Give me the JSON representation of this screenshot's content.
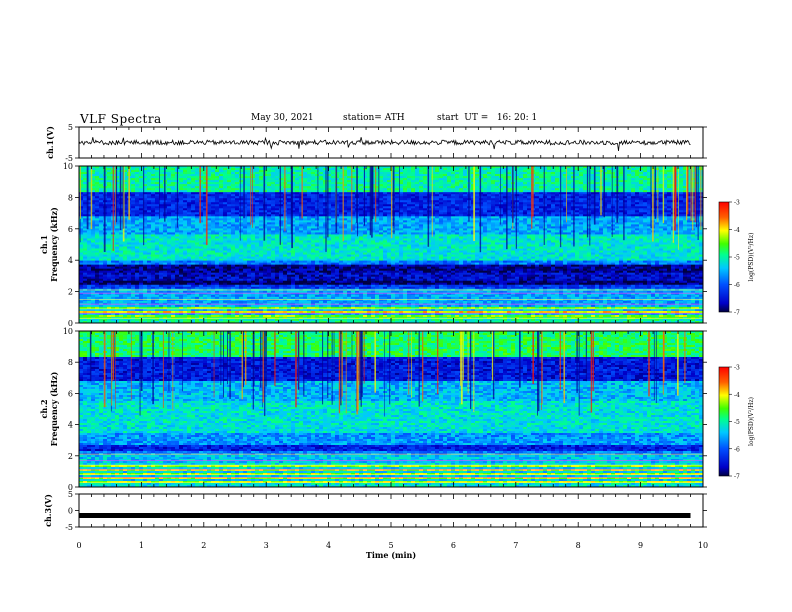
{
  "header": {
    "title": "VLF Spectra",
    "date": "May 30, 2021",
    "station": "station= ATH",
    "start": "start  UT =   16: 20: 1"
  },
  "chart_data": [
    {
      "type": "line",
      "panel": "ch1-voltage",
      "ylabel": "ch.1(V)",
      "ylim": [
        -5,
        5
      ],
      "yticks": [
        "5",
        "-5"
      ],
      "xlim": [
        0,
        10
      ],
      "description_series": [
        {
          "values_approx_level": 0,
          "noise_amplitude": 1.5
        }
      ]
    },
    {
      "type": "heatmap",
      "panel": "ch1-spectrogram",
      "ylabel": [
        "ch.1",
        "Frequency (kHz)"
      ],
      "ylim": [
        0,
        10
      ],
      "yticks": [
        "10",
        "8",
        "6",
        "4",
        "2",
        "0"
      ],
      "xlim": [
        0,
        10
      ],
      "colorbar": {
        "label": "log(PSD)(V²/Hz)",
        "range": [
          -7,
          -3
        ],
        "ticks": [
          "-3",
          "-4",
          "-5",
          "-6",
          "-7"
        ]
      }
    },
    {
      "type": "heatmap",
      "panel": "ch2-spectrogram",
      "ylabel": [
        "ch.2",
        "Frequency (kHz)"
      ],
      "ylim": [
        0,
        10
      ],
      "yticks": [
        "10",
        "8",
        "6",
        "4",
        "2",
        "0"
      ],
      "xlim": [
        0,
        10
      ],
      "colorbar": {
        "label": "log(PSD)(V²/Hz)",
        "range": [
          -7,
          -3
        ],
        "ticks": [
          "-3",
          "-4",
          "-5",
          "-6",
          "-7"
        ]
      }
    },
    {
      "type": "line",
      "panel": "ch3-voltage",
      "ylabel": "ch.3(V)",
      "ylim": [
        -5,
        5
      ],
      "yticks": [
        "5",
        "0",
        "-5"
      ],
      "xlim": [
        0,
        10
      ],
      "series": [
        {
          "x": [
            0,
            9.8
          ],
          "values": [
            -1.5,
            -1.5
          ]
        }
      ]
    }
  ],
  "xaxis": {
    "label": "Time  (min)",
    "ticks": [
      "0",
      "1",
      "2",
      "3",
      "4",
      "5",
      "6",
      "7",
      "8",
      "9",
      "10"
    ]
  }
}
